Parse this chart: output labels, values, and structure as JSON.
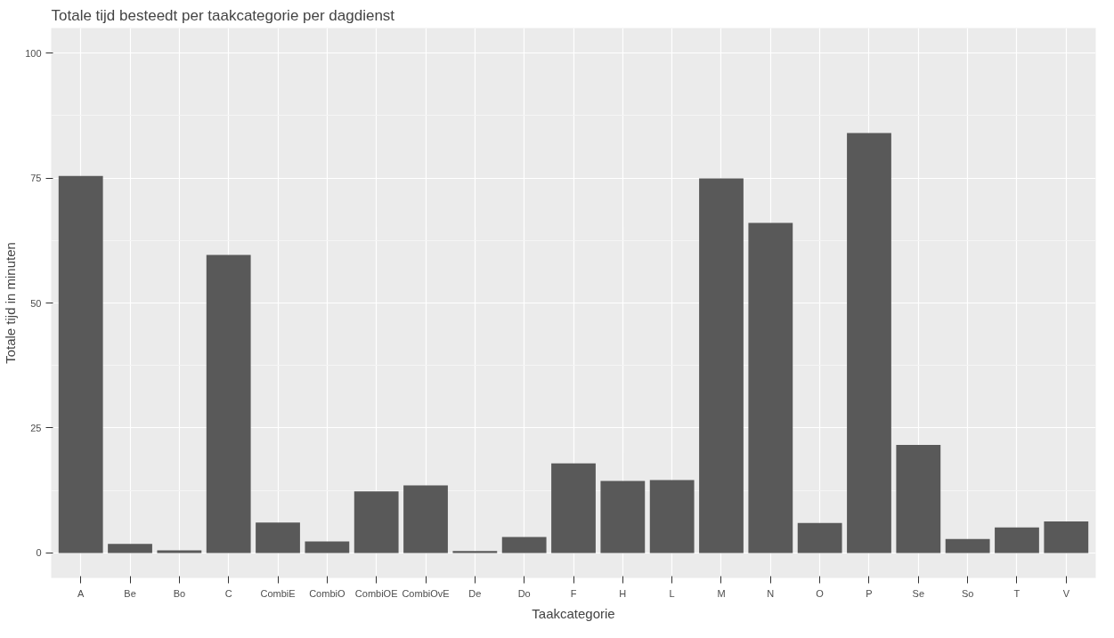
{
  "chart_data": {
    "type": "bar",
    "title": "Totale tijd besteedt per taakcategorie per dagdienst",
    "xlabel": "Taakcategorie",
    "ylabel": "Totale tijd in minuten",
    "categories": [
      "A",
      "Be",
      "Bo",
      "C",
      "CombiE",
      "CombiO",
      "CombiOE",
      "CombiOvE",
      "De",
      "Do",
      "F",
      "H",
      "L",
      "M",
      "N",
      "O",
      "P",
      "Se",
      "So",
      "T",
      "V"
    ],
    "values": [
      75.4,
      1.8,
      0.5,
      59.6,
      6.1,
      2.3,
      12.3,
      13.5,
      0.4,
      3.2,
      17.9,
      14.4,
      14.6,
      74.9,
      66.0,
      6.0,
      84.0,
      21.6,
      2.8,
      5.1,
      6.3
    ],
    "color": "#595959",
    "ylim": [
      -5,
      105
    ],
    "yticks": [
      0,
      25,
      50,
      75,
      100
    ],
    "grid": true
  }
}
